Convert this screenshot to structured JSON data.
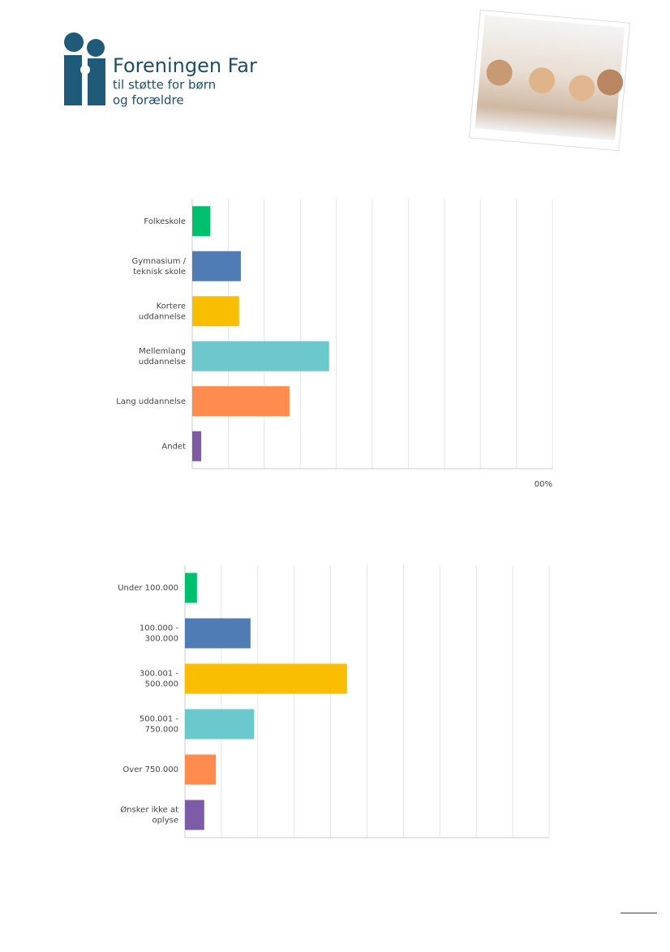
{
  "logo": {
    "name": "Foreningen Far",
    "tagline": [
      "til støtte for børn",
      "og forældre"
    ]
  },
  "chart_data": [
    {
      "type": "hbar",
      "categories": [
        "Folkeskole",
        "Gymnasium /\nteknisk skole",
        "Kortere\nuddannelse",
        "Mellemlang\nuddannelse",
        "Lang uddannelse",
        "Andet"
      ],
      "values": [
        5,
        13.5,
        13,
        38,
        27,
        2.5
      ],
      "colors": [
        "#00bf6f",
        "#507cb6",
        "#f9be00",
        "#6bc8cd",
        "#ff8b4f",
        "#7d5ba6"
      ],
      "xlim": [
        0,
        100
      ],
      "xgrid": [
        0,
        10,
        20,
        30,
        40,
        50,
        60,
        70,
        80,
        90,
        100
      ],
      "xticks": [
        {
          "value": 100,
          "label": "00%"
        }
      ]
    },
    {
      "type": "hbar",
      "categories": [
        "Under 100.000",
        "100.000 -\n300.000",
        "300.001 -\n500.000",
        "500.001 -\n750.000",
        "Over 750.000",
        "Ønsker ikke at\noplyse"
      ],
      "values": [
        3.3,
        18,
        44.5,
        19,
        8.5,
        5.3
      ],
      "colors": [
        "#00bf6f",
        "#507cb6",
        "#f9be00",
        "#6bc8cd",
        "#ff8b4f",
        "#7d5ba6"
      ],
      "xlim": [
        0,
        100
      ],
      "xgrid": [
        0,
        10,
        20,
        30,
        40,
        50,
        60,
        70,
        80,
        90,
        100
      ],
      "xticks": []
    }
  ]
}
